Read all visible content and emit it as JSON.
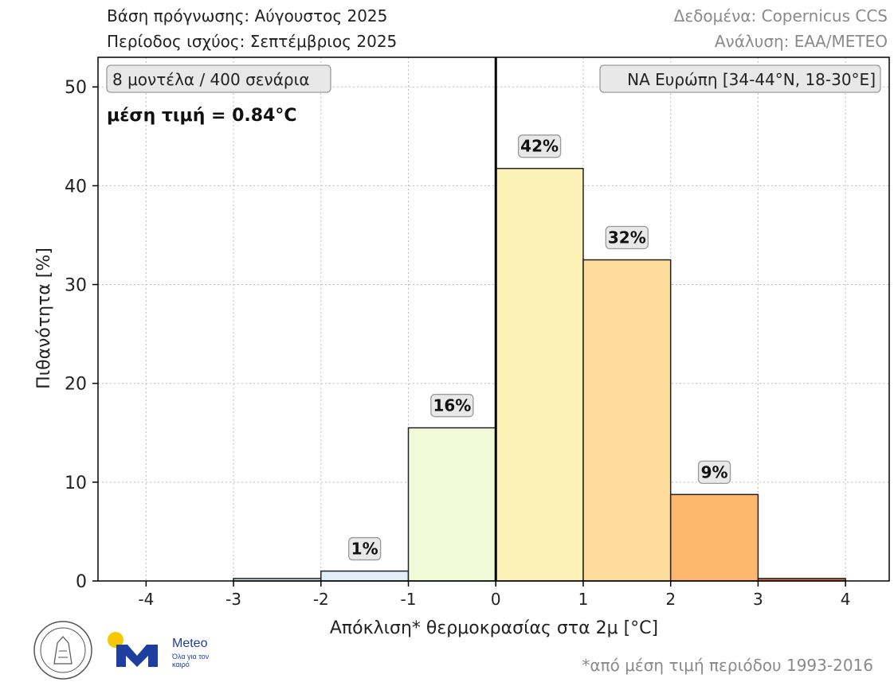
{
  "header": {
    "forecast_base": "Βάση πρόγνωσης: Αύγουστος 2025",
    "valid_period": "Περίοδος ισχύος: Σεπτέμβριος 2025",
    "data_source": "Δεδομένα: Copernicus CCS",
    "analysis": "Ανάλυση: ΕΑΑ/METEO"
  },
  "footer": {
    "note": "*από μέση τιμή περιόδου 1993-2016",
    "meteo_name": "Meteo",
    "meteo_tagline": "Όλα για τον καιρό"
  },
  "colors": {
    "frame": "#000000",
    "grid": "#bdbdbd",
    "label_box_fill": "#e8e8e8",
    "label_box_stroke": "#9a9a9a",
    "meteo_blue": "#1e3fa0",
    "meteo_yellow": "#f7c800"
  },
  "chart_data": {
    "type": "bar",
    "title": "",
    "xlabel": "Απόκλιση* θερμοκρασίας στα 2μ [°C]",
    "ylabel": "Πιθανότητα [%]",
    "xlim": [
      -4.55,
      4.5
    ],
    "ylim": [
      0,
      53
    ],
    "xticks": [
      -4,
      -3,
      -2,
      -1,
      0,
      1,
      2,
      3,
      4
    ],
    "yticks": [
      0,
      10,
      20,
      30,
      40,
      50
    ],
    "grid": true,
    "bins": [
      {
        "from": -3,
        "to": -2,
        "value": 0.25,
        "label": "",
        "color": "#cfe3ee"
      },
      {
        "from": -2,
        "to": -1,
        "value": 1.0,
        "label": "1%",
        "color": "#e1f0f8"
      },
      {
        "from": -1,
        "to": 0,
        "value": 15.5,
        "label": "16%",
        "color": "#f1f9d8"
      },
      {
        "from": 0,
        "to": 1,
        "value": 41.75,
        "label": "42%",
        "color": "#fcf1b6"
      },
      {
        "from": 1,
        "to": 2,
        "value": 32.5,
        "label": "32%",
        "color": "#fddc9c"
      },
      {
        "from": 2,
        "to": 3,
        "value": 8.75,
        "label": "9%",
        "color": "#fdb76e"
      },
      {
        "from": 3,
        "to": 4,
        "value": 0.25,
        "label": "",
        "color": "#e07040"
      }
    ],
    "reference_line_x": 0,
    "annotations": {
      "ensemble": "8 μοντέλα / 400 σενάρια",
      "mean": "μέση τιμή = 0.84°C",
      "region": "ΝΑ Ευρώπη [34-44°N, 18-30°E]"
    }
  }
}
